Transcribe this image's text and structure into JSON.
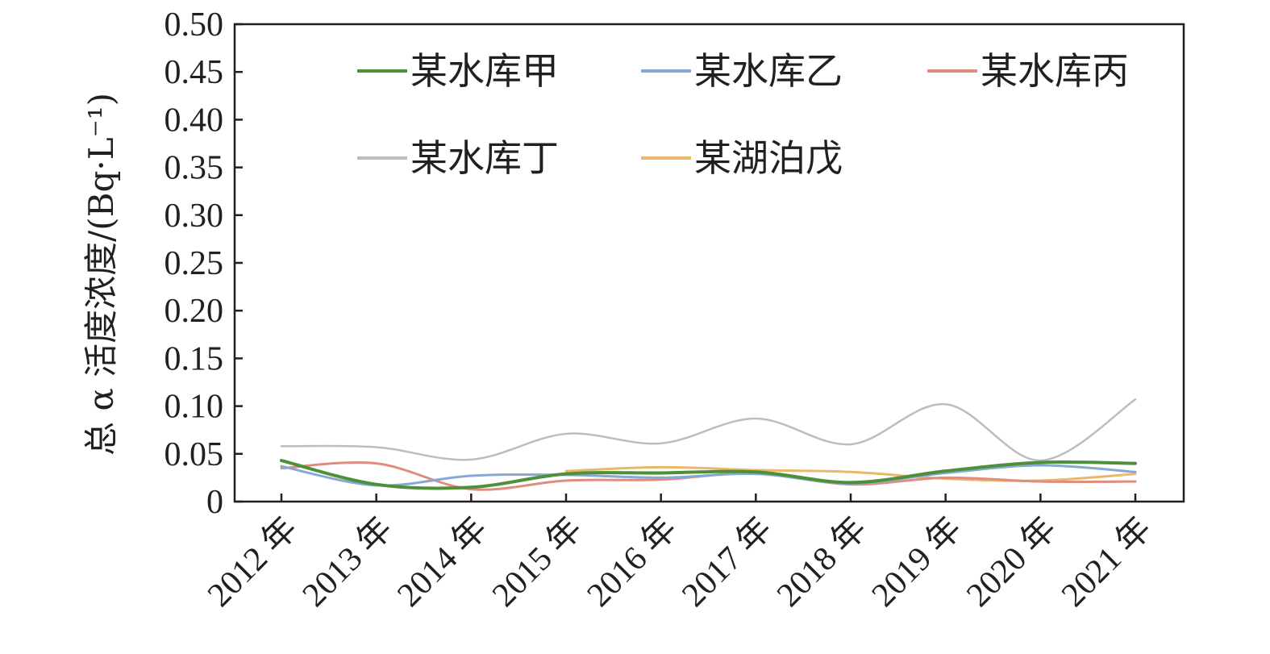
{
  "chart_data": {
    "type": "line",
    "title": "",
    "xlabel": "",
    "ylabel": "总 α 活度浓度/(Bq·L⁻¹)",
    "categories": [
      "2012 年",
      "2013 年",
      "2014 年",
      "2015 年",
      "2016 年",
      "2017 年",
      "2018 年",
      "2019 年",
      "2020 年",
      "2021 年"
    ],
    "ylim": [
      0,
      0.5
    ],
    "yticks": [
      "0",
      "0.05",
      "0.10",
      "0.15",
      "0.20",
      "0.25",
      "0.30",
      "0.35",
      "0.40",
      "0.45",
      "0.50"
    ],
    "grid": false,
    "legend_position": "top",
    "series": [
      {
        "name": "某水库甲",
        "color": "#4e8f3a",
        "values": [
          0.043,
          0.018,
          0.015,
          0.029,
          0.03,
          0.031,
          0.02,
          0.032,
          0.041,
          0.04
        ]
      },
      {
        "name": "某水库乙",
        "color": "#86a8d4",
        "values": [
          0.037,
          0.017,
          0.027,
          0.028,
          0.025,
          0.029,
          0.019,
          0.03,
          0.038,
          0.031
        ]
      },
      {
        "name": "某水库丙",
        "color": "#e08d80",
        "values": [
          0.035,
          0.04,
          0.013,
          0.022,
          0.023,
          0.03,
          0.018,
          0.025,
          0.021,
          0.021
        ]
      },
      {
        "name": "某水库丁",
        "color": "#bdbdbd",
        "values": [
          0.058,
          0.057,
          0.044,
          0.071,
          0.061,
          0.087,
          0.06,
          0.102,
          0.043,
          0.107
        ]
      },
      {
        "name": "某湖泊戊",
        "color": "#e9b96a",
        "values": [
          null,
          null,
          null,
          0.032,
          0.036,
          0.033,
          0.031,
          0.024,
          0.022,
          0.029
        ]
      }
    ]
  }
}
